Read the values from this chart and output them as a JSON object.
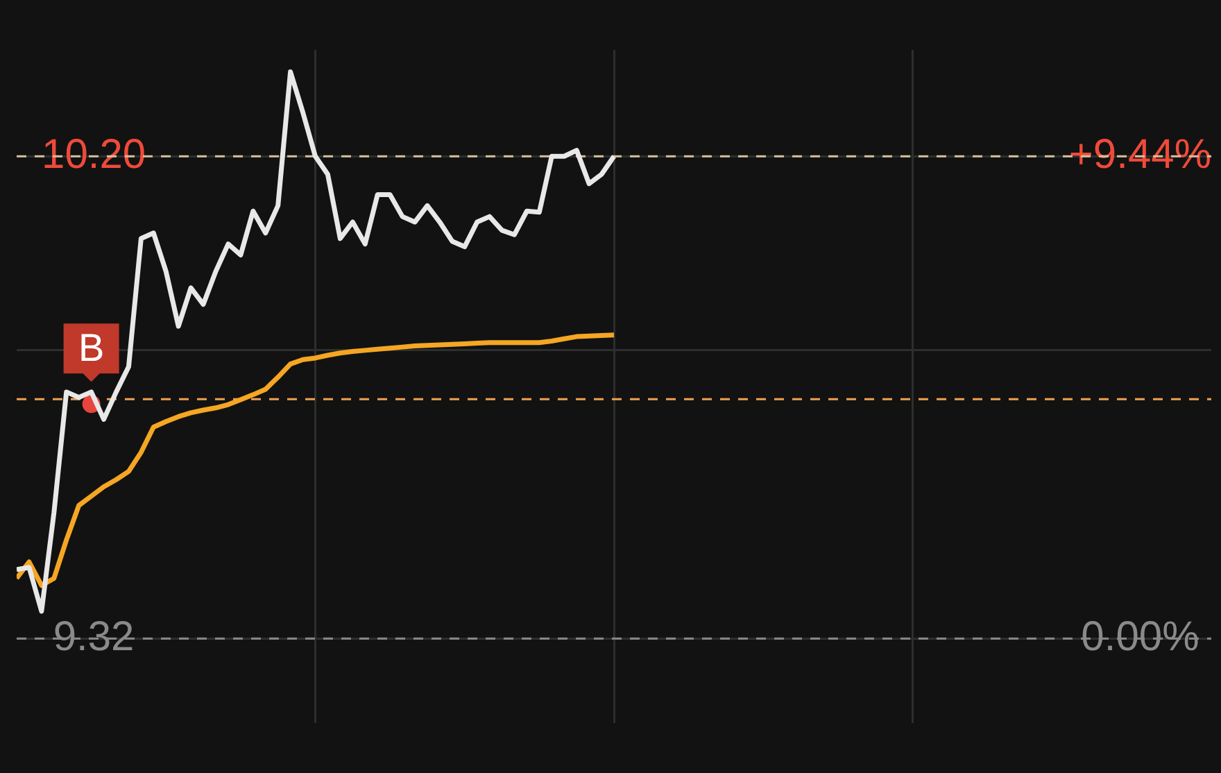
{
  "chart_data": {
    "type": "line",
    "categories": [
      null,
      null,
      null,
      null,
      null,
      null,
      null,
      null,
      null,
      null,
      null,
      null,
      null,
      null,
      null,
      null,
      null,
      null,
      null,
      null,
      null,
      null,
      null,
      null,
      null,
      null,
      null,
      null,
      null,
      null,
      null,
      null,
      null,
      null,
      null,
      null,
      null,
      null,
      null,
      null,
      null,
      null,
      null,
      null,
      null,
      null,
      null,
      null,
      null,
      null,
      null,
      null,
      null,
      null,
      null,
      null,
      null,
      null,
      null,
      null,
      null,
      null,
      null,
      null,
      null,
      null,
      null,
      null,
      null,
      null,
      null,
      null,
      null,
      null,
      null,
      null,
      null,
      null,
      null,
      null,
      null,
      null,
      null,
      null,
      null,
      null,
      null,
      null,
      null,
      null,
      null,
      null,
      null,
      null,
      null,
      null,
      null
    ],
    "ylim": [
      9.166,
      10.394
    ],
    "yticks": [
      {
        "value": 10.2,
        "label": "10.20"
      },
      {
        "value": 9.847,
        "label": null
      },
      9.32
    ],
    "y2lim": [
      -1.65,
      11.52
    ],
    "y2ticks": [
      {
        "value": 9.44,
        "label": "+9.44%"
      },
      {
        "value": 0,
        "label": "0.00%"
      }
    ],
    "tick_labels": "y",
    "grid": true,
    "legend": false,
    "marker": "none",
    "line_style": "solid",
    "series": [
      {
        "color": "#e8e8e8",
        "values": [
          9.446,
          9.45,
          9.37,
          9.55,
          9.77,
          9.76,
          9.77,
          9.72,
          9.77,
          9.816,
          10.05,
          10.06,
          9.99,
          9.89,
          9.96,
          9.93,
          9.99,
          10.04,
          10.02,
          10.1,
          10.06,
          10.11,
          10.354,
          10.28,
          10.2,
          10.167,
          10.05,
          10.08,
          10.04,
          10.13,
          10.13,
          10.09,
          10.08,
          10.11,
          10.08,
          10.045,
          10.035,
          10.08,
          10.09,
          10.065,
          10.057,
          10.1,
          10.098,
          10.2,
          10.2,
          10.211,
          10.15,
          10.167,
          10.2,
          null,
          null,
          null,
          null,
          null,
          null,
          null,
          null,
          null,
          null,
          null,
          null,
          null,
          null,
          null,
          null,
          null,
          null,
          null,
          null,
          null,
          null,
          null,
          null,
          null,
          null,
          null,
          null,
          null,
          null,
          null,
          null,
          null,
          null,
          null,
          null,
          null,
          null,
          null,
          null,
          null,
          null,
          null,
          null,
          null,
          null,
          null,
          null
        ]
      },
      {
        "color": "#f5a623",
        "values": [
          9.43,
          9.46,
          9.417,
          9.43,
          9.5,
          9.563,
          9.58,
          9.597,
          9.61,
          9.625,
          9.66,
          9.706,
          9.716,
          9.725,
          9.732,
          9.737,
          9.741,
          9.747,
          9.756,
          9.765,
          9.775,
          9.797,
          9.821,
          9.829,
          9.832,
          9.837,
          9.841,
          9.844,
          9.846,
          9.848,
          9.85,
          9.852,
          9.854,
          9.855,
          9.856,
          9.857,
          9.858,
          9.859,
          9.86,
          9.86,
          9.86,
          9.86,
          9.86,
          9.863,
          9.867,
          9.871,
          9.872,
          9.873,
          9.874,
          null,
          null,
          null,
          null,
          null,
          null,
          null,
          null,
          null,
          null,
          null,
          null,
          null,
          null,
          null,
          null,
          null,
          null,
          null,
          null,
          null,
          null,
          null,
          null,
          null,
          null,
          null,
          null,
          null,
          null,
          null,
          null,
          null,
          null,
          null,
          null,
          null,
          null,
          null,
          null,
          null,
          null,
          null,
          null,
          null,
          null,
          null,
          null
        ]
      },
      {
        "type": "scatter",
        "marker": "circle",
        "color": "#e8453c",
        "values": [
          null,
          null,
          null,
          null,
          null,
          null,
          9.748,
          null,
          null,
          null,
          null,
          null,
          null,
          null,
          null,
          null,
          null,
          null,
          null,
          null,
          null,
          null,
          null,
          null,
          null,
          null,
          null,
          null,
          null,
          null,
          null,
          null,
          null,
          null,
          null,
          null,
          null,
          null,
          null,
          null,
          null,
          null,
          null,
          null,
          null,
          null,
          null,
          null,
          null,
          null,
          null,
          null,
          null,
          null,
          null,
          null,
          null,
          null,
          null,
          null,
          null,
          null,
          null,
          null,
          null,
          null,
          null,
          null,
          null,
          null,
          null,
          null,
          null,
          null,
          null,
          null,
          null,
          null,
          null,
          null,
          null,
          null,
          null,
          null,
          null,
          null,
          null,
          null,
          null,
          null,
          null,
          null,
          null,
          null,
          null,
          null,
          null
        ],
        "value_labels": [
          null,
          null,
          null,
          null,
          null,
          null,
          "B",
          null,
          null,
          null,
          null,
          null,
          null,
          null,
          null,
          null,
          null,
          null,
          null,
          null,
          null,
          null,
          null,
          null,
          null,
          null,
          null,
          null,
          null,
          null,
          null,
          null,
          null,
          null,
          null,
          null,
          null,
          null,
          null,
          null,
          null,
          null,
          null,
          null,
          null,
          null,
          null,
          null,
          null,
          null,
          null,
          null,
          null,
          null,
          null,
          null,
          null,
          null,
          null,
          null,
          null,
          null,
          null,
          null,
          null,
          null,
          null,
          null,
          null,
          null,
          null,
          null,
          null,
          null,
          null,
          null,
          null,
          null,
          null,
          null,
          null,
          null,
          null,
          null,
          null,
          null,
          null,
          null,
          null,
          null,
          null,
          null,
          null,
          null,
          null,
          null,
          null
        ]
      }
    ],
    "ref_lines": [
      {
        "axis": "y",
        "value": 10.2,
        "color": "#d8c09a",
        "line_style": "dashed"
      },
      {
        "axis": "y",
        "value": 9.757,
        "color": "#f0a050",
        "line_style": "dashed"
      },
      {
        "axis": "y",
        "value": 9.32,
        "color": "#8a8a8a",
        "line_style": "dashed"
      }
    ]
  }
}
